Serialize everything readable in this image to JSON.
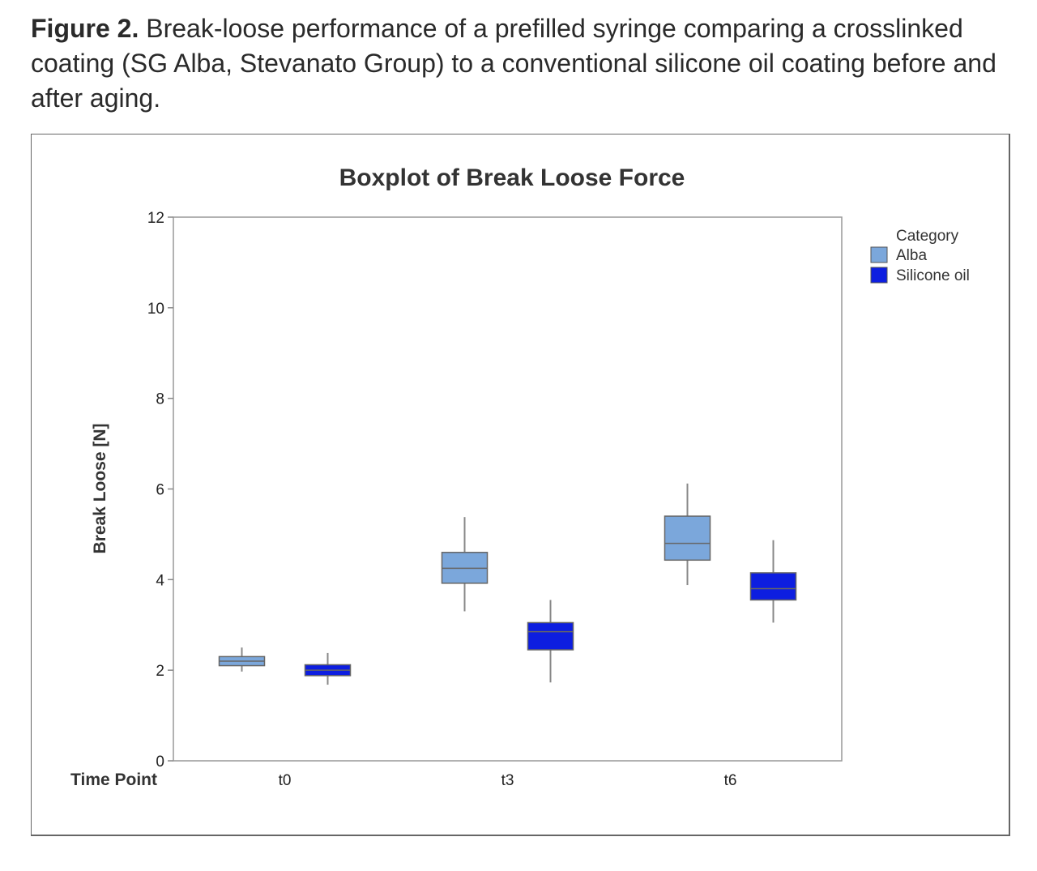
{
  "caption": {
    "figure_label": "Figure 2.",
    "text": " Break-loose performance of a prefilled syringe comparing a crosslinked coating (SG Alba, Stevanato Group) to a conventional silicone oil coating before and after aging."
  },
  "chart_data": {
    "type": "boxplot",
    "title": "Boxplot of Break Loose Force",
    "ylabel": "Break Loose [N]",
    "xlabel": "Time Point",
    "ylim": [
      0,
      12
    ],
    "yticks": [
      0,
      2,
      4,
      6,
      8,
      10,
      12
    ],
    "categories": [
      "t0",
      "t3",
      "t6"
    ],
    "legend": {
      "title": "Category",
      "position": "right"
    },
    "series": [
      {
        "name": "Alba",
        "color": "#7ba7db",
        "boxes": [
          {
            "min": 1.97,
            "q1": 2.1,
            "median": 2.2,
            "q3": 2.3,
            "max": 2.5
          },
          {
            "min": 3.3,
            "q1": 3.92,
            "median": 4.25,
            "q3": 4.6,
            "max": 5.38
          },
          {
            "min": 3.88,
            "q1": 4.43,
            "median": 4.8,
            "q3": 5.4,
            "max": 6.12
          }
        ]
      },
      {
        "name": "Silicone oil",
        "color": "#0d1ee0",
        "boxes": [
          {
            "min": 1.68,
            "q1": 1.88,
            "median": 2.0,
            "q3": 2.12,
            "max": 2.38
          },
          {
            "min": 1.73,
            "q1": 2.45,
            "median": 2.85,
            "q3": 3.05,
            "max": 3.55
          },
          {
            "min": 3.05,
            "q1": 3.55,
            "median": 3.8,
            "q3": 4.15,
            "max": 4.87
          }
        ]
      }
    ]
  }
}
